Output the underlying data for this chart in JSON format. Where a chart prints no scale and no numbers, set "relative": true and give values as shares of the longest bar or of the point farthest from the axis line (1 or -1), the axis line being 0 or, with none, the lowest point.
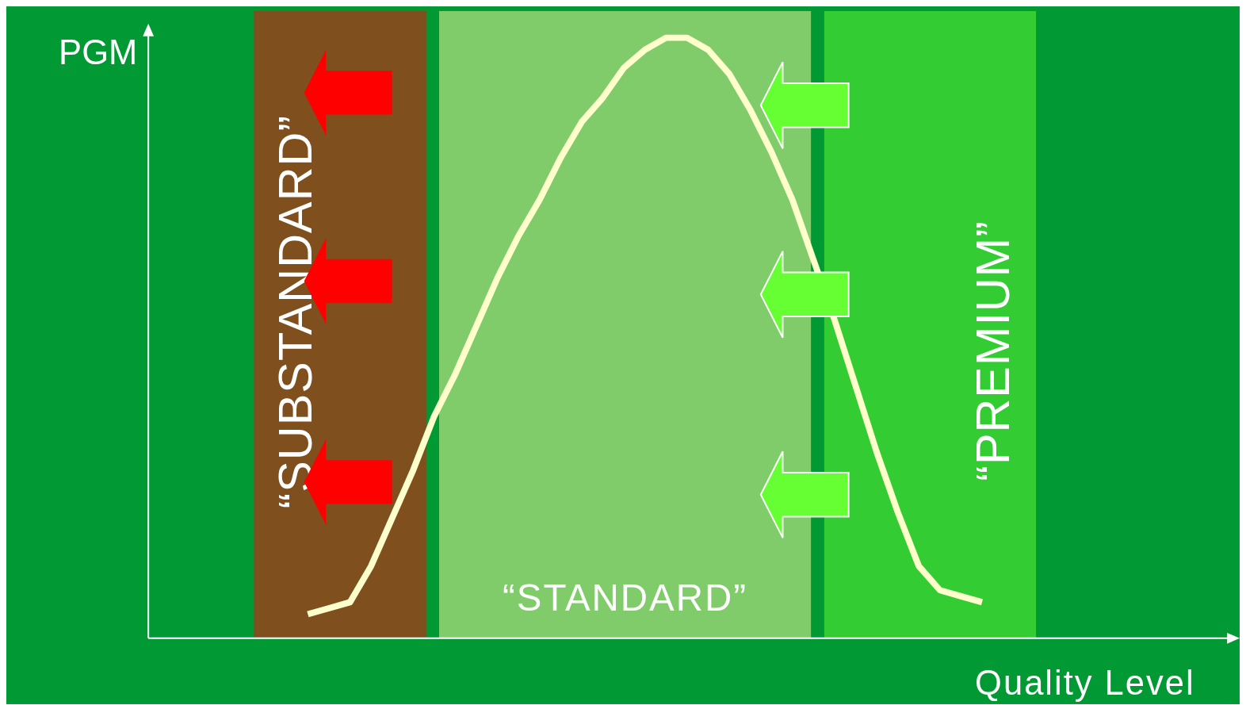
{
  "chart_data": {
    "type": "line",
    "relative": true,
    "xlabel": "Quality Level",
    "ylabel": "PGM",
    "categories": [
      null,
      null,
      null,
      null,
      null,
      null,
      null,
      null,
      null,
      null,
      null,
      null,
      null,
      null,
      null,
      null,
      null,
      null,
      null,
      null,
      null,
      null,
      null,
      null,
      null,
      null,
      null,
      null,
      null,
      null,
      null,
      null,
      null
    ],
    "series": [
      {
        "color": "#ffffcc",
        "values": [
          0.04,
          0.05,
          0.06,
          0.12,
          0.2,
          0.28,
          0.37,
          0.44,
          0.52,
          0.6,
          0.67,
          0.73,
          0.8,
          0.86,
          0.9,
          0.95,
          0.98,
          1.0,
          1.0,
          0.98,
          0.94,
          0.88,
          0.81,
          0.73,
          0.63,
          0.53,
          0.42,
          0.31,
          0.21,
          0.12,
          0.08,
          0.07,
          0.06
        ]
      }
    ],
    "annotations": [
      "“SUBSTANDARD”",
      "“STANDARD”",
      "“PREMIUM”"
    ]
  }
}
